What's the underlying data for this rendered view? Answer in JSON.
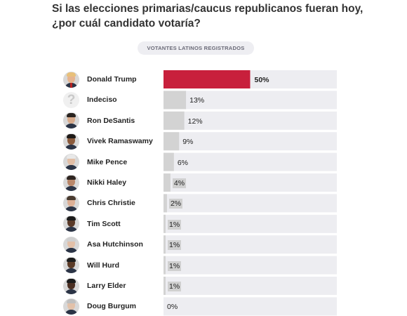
{
  "header": {
    "title": "Si las elecciones primarias/caucus republicanos fueran hoy, ¿por cuál candidato votaría?",
    "subtitle": "VOTANTES LATINOS REGISTRADOS"
  },
  "colors": {
    "lead": "#c8203c",
    "bar": "#d3d3d3",
    "track": "#ededf1"
  },
  "chart_data": {
    "type": "bar",
    "orientation": "horizontal",
    "xlim": [
      0,
      100
    ],
    "categories": [
      "Donald Trump",
      "Indeciso",
      "Ron DeSantis",
      "Vivek Ramaswamy",
      "Mike Pence",
      "Nikki Haley",
      "Chris Christie",
      "Tim Scott",
      "Asa Hutchinson",
      "Will Hurd",
      "Larry Elder",
      "Doug Burgum"
    ],
    "values": [
      50,
      13,
      12,
      9,
      6,
      4,
      2,
      1,
      1,
      1,
      1,
      0
    ],
    "value_labels": [
      "50%",
      "13%",
      "12%",
      "9%",
      "6%",
      "4%",
      "2%",
      "1%",
      "1%",
      "1%",
      "1%",
      "0%"
    ],
    "avatars": [
      "trump-avatar",
      "question-mark-icon",
      "desantis-avatar",
      "ramaswamy-avatar",
      "pence-avatar",
      "haley-avatar",
      "christie-avatar",
      "scott-avatar",
      "hutchinson-avatar",
      "hurd-avatar",
      "elder-avatar",
      "burgum-avatar"
    ]
  }
}
